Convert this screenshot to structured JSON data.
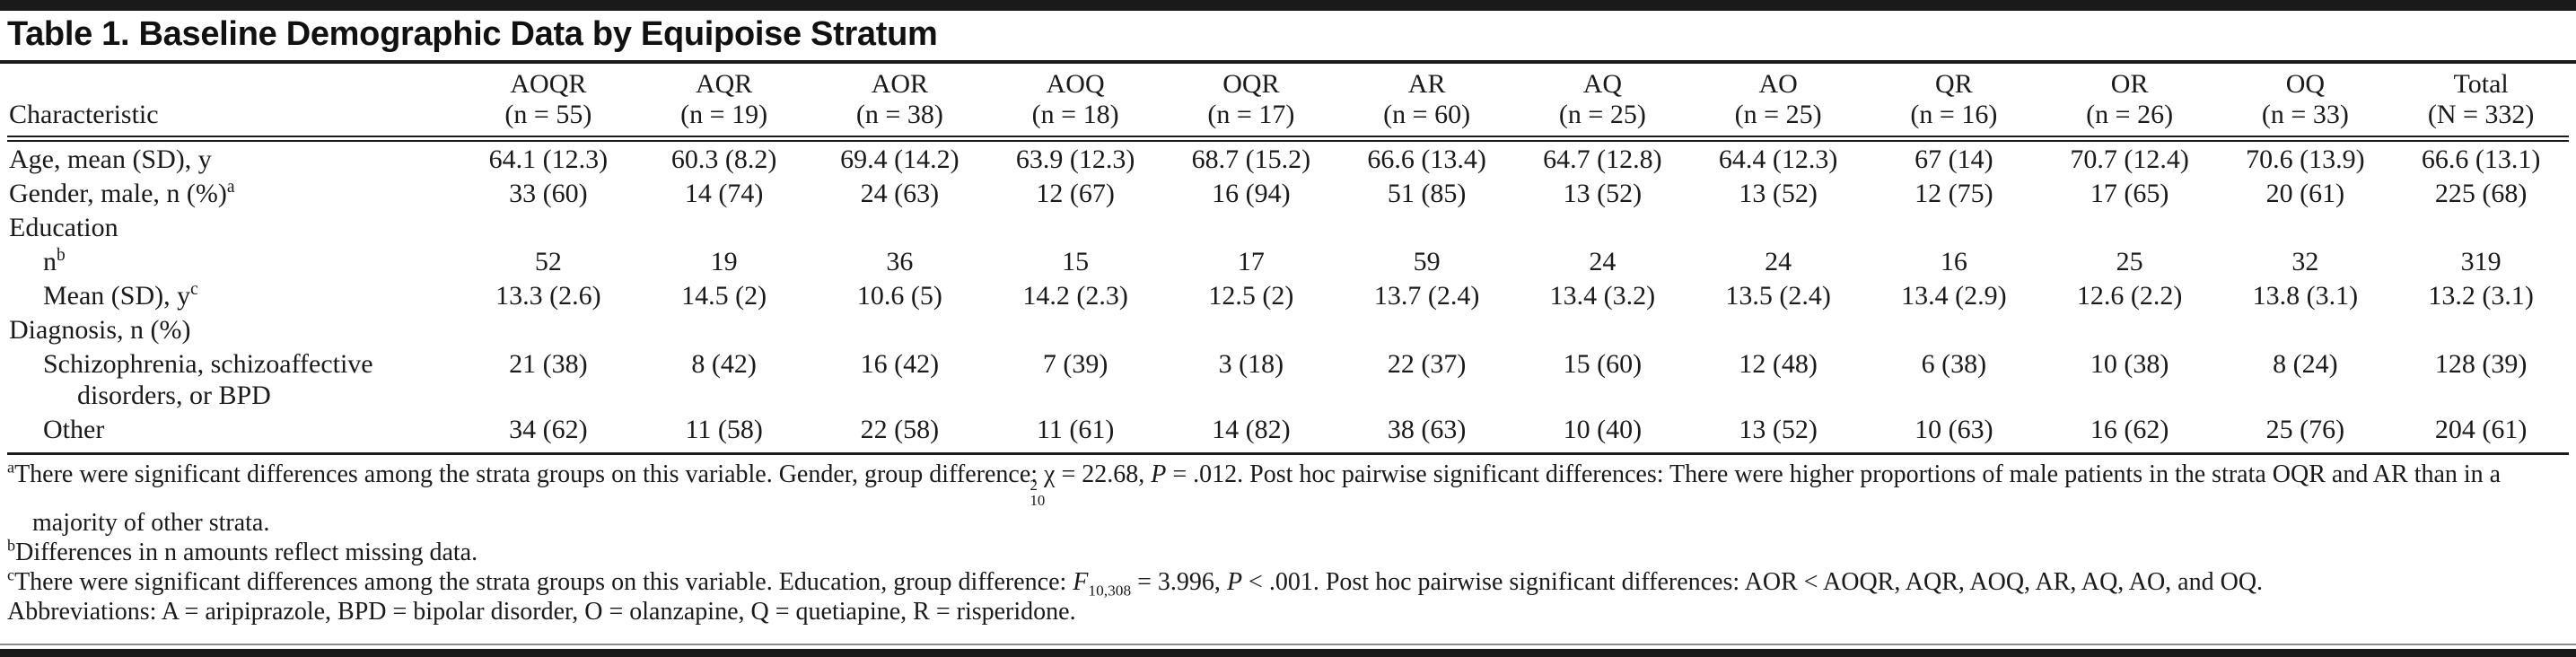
{
  "title": "Table 1. Baseline Demographic Data by Equipoise Stratum",
  "table": {
    "row_header": "Characteristic",
    "columns": [
      {
        "name": "AOQR",
        "n": "(n = 55)"
      },
      {
        "name": "AQR",
        "n": "(n = 19)"
      },
      {
        "name": "AOR",
        "n": "(n = 38)"
      },
      {
        "name": "AOQ",
        "n": "(n = 18)"
      },
      {
        "name": "OQR",
        "n": "(n = 17)"
      },
      {
        "name": "AR",
        "n": "(n = 60)"
      },
      {
        "name": "AQ",
        "n": "(n = 25)"
      },
      {
        "name": "AO",
        "n": "(n = 25)"
      },
      {
        "name": "QR",
        "n": "(n = 16)"
      },
      {
        "name": "OR",
        "n": "(n = 26)"
      },
      {
        "name": "OQ",
        "n": "(n = 33)"
      },
      {
        "name": "Total",
        "n": "(N = 332)"
      }
    ],
    "rows": [
      {
        "label": "Age, mean (SD), y",
        "sup": "",
        "indent": 0,
        "cells": [
          "64.1 (12.3)",
          "60.3 (8.2)",
          "69.4 (14.2)",
          "63.9 (12.3)",
          "68.7 (15.2)",
          "66.6 (13.4)",
          "64.7 (12.8)",
          "64.4 (12.3)",
          "67 (14)",
          "70.7 (12.4)",
          "70.6 (13.9)",
          "66.6 (13.1)"
        ]
      },
      {
        "label": "Gender, male, n (%)",
        "sup": "a",
        "indent": 0,
        "cells": [
          "33 (60)",
          "14 (74)",
          "24 (63)",
          "12 (67)",
          "16 (94)",
          "51 (85)",
          "13 (52)",
          "13 (52)",
          "12 (75)",
          "17 (65)",
          "20 (61)",
          "225 (68)"
        ]
      },
      {
        "label": "Education",
        "sup": "",
        "indent": 0,
        "cells": []
      },
      {
        "label": "n",
        "sup": "b",
        "indent": 1,
        "cells": [
          "52",
          "19",
          "36",
          "15",
          "17",
          "59",
          "24",
          "24",
          "16",
          "25",
          "32",
          "319"
        ]
      },
      {
        "label": "Mean (SD), y",
        "sup": "c",
        "indent": 1,
        "cells": [
          "13.3 (2.6)",
          "14.5 (2)",
          "10.6 (5)",
          "14.2 (2.3)",
          "12.5 (2)",
          "13.7 (2.4)",
          "13.4 (3.2)",
          "13.5 (2.4)",
          "13.4 (2.9)",
          "12.6 (2.2)",
          "13.8 (3.1)",
          "13.2 (3.1)"
        ]
      },
      {
        "label": "Diagnosis, n (%)",
        "sup": "",
        "indent": 0,
        "cells": []
      },
      {
        "label": "Schizophrenia, schizoaffective disorders, or BPD",
        "sup": "",
        "indent": 1,
        "cells": [
          "21 (38)",
          "8 (42)",
          "16 (42)",
          "7 (39)",
          "3 (18)",
          "22 (37)",
          "15 (60)",
          "12 (48)",
          "6 (38)",
          "10 (38)",
          "8 (24)",
          "128 (39)"
        ]
      },
      {
        "label": "Other",
        "sup": "",
        "indent": 1,
        "cells": [
          "34 (62)",
          "11 (58)",
          "22 (58)",
          "11 (61)",
          "14 (82)",
          "38 (63)",
          "10 (40)",
          "13 (52)",
          "10 (63)",
          "16 (62)",
          "25 (76)",
          "204 (61)"
        ]
      }
    ]
  },
  "footnotes": {
    "a": {
      "marker": "a",
      "text1": "There were significant differences among the strata groups on this variable. Gender, group difference: ",
      "chi": "χ",
      "chi_sup": "2",
      "chi_sub": "10",
      "text2": " = 22.68, ",
      "p": "P",
      "text3": " = .012. Post hoc pairwise significant differences: There were higher proportions of male patients in the strata OQR and AR than in a majority of other strata."
    },
    "b": {
      "marker": "b",
      "text": "Differences in n amounts reflect missing data."
    },
    "c": {
      "marker": "c",
      "text1": "There were significant differences among the strata groups on this variable. Education, group difference: ",
      "f": "F",
      "f_sub": "10,308",
      "text2": " = 3.996, ",
      "p": "P",
      "text3": " < .001. Post hoc pairwise significant differences: AOR < AOQR, AQR, AOQ, AR, AQ, AO, and OQ."
    },
    "abbreviations": "Abbreviations: A = aripiprazole, BPD = bipolar disorder, O = olanzapine, Q = quetiapine, R = risperidone."
  }
}
